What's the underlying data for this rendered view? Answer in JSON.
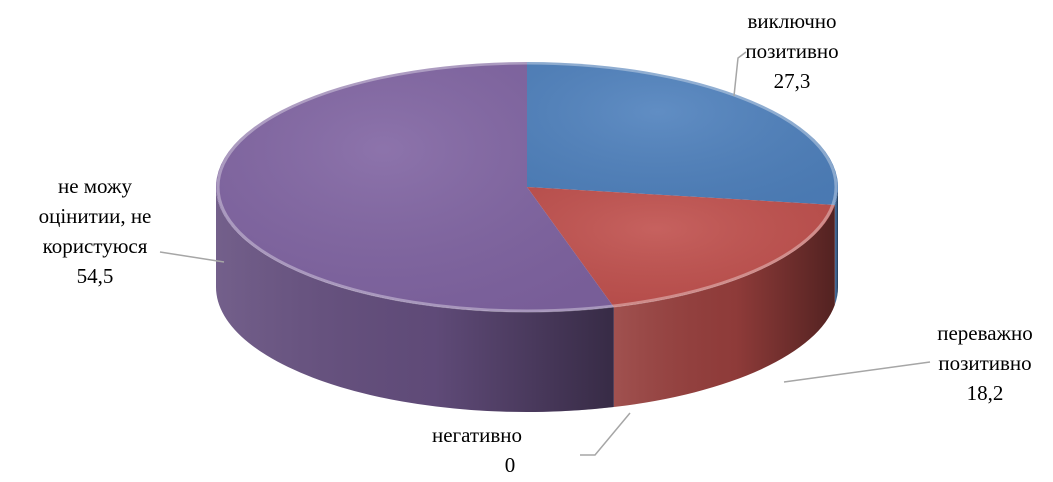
{
  "chart_data": {
    "type": "pie",
    "title": "",
    "slices": [
      {
        "label_lines": [
          "виключно",
          "позитивно"
        ],
        "value": 27.3,
        "value_label": "27,3",
        "color": "#4F81BD"
      },
      {
        "label_lines": [
          "переважно",
          "позитивно"
        ],
        "value": 18.2,
        "value_label": "18,2",
        "color": "#C0504D"
      },
      {
        "label_lines": [
          "негативно"
        ],
        "value": 0,
        "value_label": "0",
        "color": "#9BBB59"
      },
      {
        "label_lines": [
          "не можу",
          "оцінитии, не",
          "користуюся"
        ],
        "value": 54.5,
        "value_label": "54,5",
        "color": "#8064A2"
      }
    ],
    "legend": "none",
    "style": "3d-pie"
  }
}
